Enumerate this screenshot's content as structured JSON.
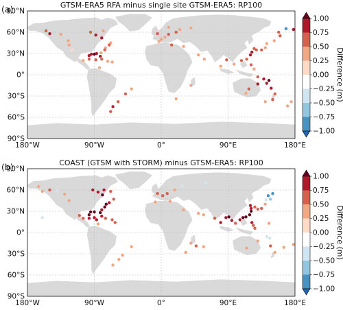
{
  "panels": [
    {
      "label": "(a)",
      "title": "GTSM-ERA5 RFA minus single site GTSM-ERA5: RP100",
      "lat_ticks": [
        "90°N",
        "60°N",
        "30°N",
        "0°",
        "30°S",
        "60°S",
        "90°S"
      ],
      "lon_ticks": [
        "180°W",
        "90°W",
        "0°",
        "90°E",
        "180°E"
      ]
    },
    {
      "label": "(b)",
      "title": "COAST (GTSM with STORM) minus GTSM-ERA5: RP100",
      "lat_ticks": [
        "90°N",
        "60°N",
        "30°N",
        "0°",
        "30°S",
        "60°S",
        "90°S"
      ],
      "lon_ticks": [
        "180°W",
        "90°W",
        "0°",
        "90°E",
        "180°E"
      ]
    }
  ],
  "colorbar": {
    "label": "Difference (m)",
    "tick_labels": [
      "1.00",
      "0.75",
      "0.50",
      "0.25",
      "0.00",
      "−0.25",
      "−0.50",
      "−0.75",
      "−1.00"
    ],
    "bins": [
      {
        "lo": 0.75,
        "hi": 1.0,
        "color": "#b2182b"
      },
      {
        "lo": 0.5,
        "hi": 0.75,
        "color": "#d6604d"
      },
      {
        "lo": 0.25,
        "hi": 0.5,
        "color": "#f4a582"
      },
      {
        "lo": 0.0,
        "hi": 0.25,
        "color": "#fddbc7"
      },
      {
        "lo": -0.25,
        "hi": 0.0,
        "color": "#ffffff"
      },
      {
        "lo": -0.5,
        "hi": -0.25,
        "color": "#d1e5f0"
      },
      {
        "lo": -0.75,
        "hi": -0.5,
        "color": "#92c5de"
      },
      {
        "lo": -1.0,
        "hi": -0.75,
        "color": "#4393c3"
      }
    ],
    "extend_max_color": "#67001f",
    "extend_min_color": "#2166ac"
  },
  "chart_data": [
    {
      "type": "scatter",
      "projection": "equirectangular world map",
      "title": "GTSM-ERA5 RFA minus single site GTSM-ERA5: RP100",
      "xlim": [
        -180,
        180
      ],
      "ylim": [
        -90,
        90
      ],
      "grid": true,
      "points": [
        {
          "lon": -155,
          "lat": 62,
          "v": 0.6
        },
        {
          "lon": -150,
          "lat": 58,
          "v": 0.9
        },
        {
          "lon": -135,
          "lat": 57,
          "v": 0.4
        },
        {
          "lon": -125,
          "lat": 48,
          "v": 0.3
        },
        {
          "lon": -124,
          "lat": 42,
          "v": 0.3
        },
        {
          "lon": -120,
          "lat": 35,
          "v": 0.2
        },
        {
          "lon": -95,
          "lat": 60,
          "v": 0.5
        },
        {
          "lon": -88,
          "lat": 56,
          "v": 0.8
        },
        {
          "lon": -80,
          "lat": 52,
          "v": 0.9
        },
        {
          "lon": -78,
          "lat": 62,
          "v": 0.4
        },
        {
          "lon": -68,
          "lat": 45,
          "v": 0.4
        },
        {
          "lon": -70,
          "lat": 42,
          "v": 0.6
        },
        {
          "lon": -75,
          "lat": 38,
          "v": 0.3
        },
        {
          "lon": -76,
          "lat": 35,
          "v": 0.5
        },
        {
          "lon": -81,
          "lat": 31,
          "v": 0.4
        },
        {
          "lon": -90,
          "lat": 29,
          "v": 1.0
        },
        {
          "lon": -94,
          "lat": 29,
          "v": 0.9
        },
        {
          "lon": -87,
          "lat": 30,
          "v": 0.9
        },
        {
          "lon": -97,
          "lat": 27,
          "v": 0.8
        },
        {
          "lon": -82,
          "lat": 26,
          "v": 0.8
        },
        {
          "lon": -97,
          "lat": 22,
          "v": 0.6
        },
        {
          "lon": -88,
          "lat": 21,
          "v": 0.7
        },
        {
          "lon": -105,
          "lat": 20,
          "v": 0.4
        },
        {
          "lon": -80,
          "lat": 22,
          "v": 0.5
        },
        {
          "lon": -72,
          "lat": 19,
          "v": 0.4
        },
        {
          "lon": -66,
          "lat": 18,
          "v": 0.3
        },
        {
          "lon": -83,
          "lat": 10,
          "v": 0.3
        },
        {
          "lon": -40,
          "lat": -20,
          "v": 0.4
        },
        {
          "lon": -48,
          "lat": -27,
          "v": 0.7
        },
        {
          "lon": -58,
          "lat": -38,
          "v": 0.6
        },
        {
          "lon": -65,
          "lat": -45,
          "v": 0.8
        },
        {
          "lon": -68,
          "lat": -52,
          "v": 0.5
        },
        {
          "lon": -5,
          "lat": 58,
          "v": 0.5
        },
        {
          "lon": 5,
          "lat": 53,
          "v": 0.4
        },
        {
          "lon": 0,
          "lat": 50,
          "v": 0.3
        },
        {
          "lon": -3,
          "lat": 47,
          "v": 0.3
        },
        {
          "lon": 10,
          "lat": 57,
          "v": 0.5
        },
        {
          "lon": 20,
          "lat": 60,
          "v": 0.6
        },
        {
          "lon": 25,
          "lat": 64,
          "v": 0.4
        },
        {
          "lon": 14,
          "lat": 42,
          "v": 0.5
        },
        {
          "lon": 30,
          "lat": 40,
          "v": 0.3
        },
        {
          "lon": 10,
          "lat": 67,
          "v": 0.3
        },
        {
          "lon": 40,
          "lat": 66,
          "v": 0.3
        },
        {
          "lon": 50,
          "lat": 28,
          "v": 0.3
        },
        {
          "lon": 58,
          "lat": 22,
          "v": 0.3
        },
        {
          "lon": 80,
          "lat": 12,
          "v": 0.4
        },
        {
          "lon": 88,
          "lat": 21,
          "v": 0.7
        },
        {
          "lon": 98,
          "lat": 15,
          "v": 0.4
        },
        {
          "lon": 108,
          "lat": 20,
          "v": 0.5
        },
        {
          "lon": 115,
          "lat": 22,
          "v": 0.6
        },
        {
          "lon": 120,
          "lat": 28,
          "v": 0.8
        },
        {
          "lon": 122,
          "lat": 32,
          "v": 0.9
        },
        {
          "lon": 125,
          "lat": 37,
          "v": 0.6
        },
        {
          "lon": 128,
          "lat": 35,
          "v": 0.5
        },
        {
          "lon": 135,
          "lat": 35,
          "v": 0.7
        },
        {
          "lon": 140,
          "lat": 38,
          "v": 0.4
        },
        {
          "lon": 142,
          "lat": 44,
          "v": 0.3
        },
        {
          "lon": 152,
          "lat": 48,
          "v": 0.4
        },
        {
          "lon": 158,
          "lat": 60,
          "v": 0.5
        },
        {
          "lon": 168,
          "lat": 65,
          "v": -0.8
        },
        {
          "lon": 178,
          "lat": 64,
          "v": 0.9
        },
        {
          "lon": 160,
          "lat": 55,
          "v": 0.7
        },
        {
          "lon": 121,
          "lat": 14,
          "v": 0.5
        },
        {
          "lon": 125,
          "lat": 8,
          "v": 0.4
        },
        {
          "lon": 130,
          "lat": -3,
          "v": 0.6
        },
        {
          "lon": 138,
          "lat": -6,
          "v": 0.9
        },
        {
          "lon": 145,
          "lat": -8,
          "v": 1.0
        },
        {
          "lon": 142,
          "lat": -12,
          "v": 0.9
        },
        {
          "lon": 148,
          "lat": -19,
          "v": 0.8
        },
        {
          "lon": 153,
          "lat": -27,
          "v": 0.7
        },
        {
          "lon": 150,
          "lat": -35,
          "v": 0.6
        },
        {
          "lon": 140,
          "lat": -38,
          "v": 0.3
        },
        {
          "lon": 118,
          "lat": -20,
          "v": 0.5
        },
        {
          "lon": 114,
          "lat": -26,
          "v": 0.4
        },
        {
          "lon": 130,
          "lat": -13,
          "v": 0.8
        },
        {
          "lon": 170,
          "lat": -44,
          "v": 0.3
        },
        {
          "lon": 175,
          "lat": -38,
          "v": 0.4
        },
        {
          "lon": 20,
          "lat": -34,
          "v": 0.3
        },
        {
          "lon": 40,
          "lat": -15,
          "v": 0.3
        }
      ]
    },
    {
      "type": "scatter",
      "projection": "equirectangular world map",
      "title": "COAST (GTSM with STORM) minus GTSM-ERA5: RP100",
      "xlim": [
        -180,
        180
      ],
      "ylim": [
        -90,
        90
      ],
      "grid": true,
      "points": [
        {
          "lon": -165,
          "lat": 65,
          "v": 0.3
        },
        {
          "lon": -160,
          "lat": 58,
          "v": 0.4
        },
        {
          "lon": -150,
          "lat": 60,
          "v": 0.5
        },
        {
          "lon": -140,
          "lat": 59,
          "v": -0.5
        },
        {
          "lon": -130,
          "lat": 54,
          "v": 0.3
        },
        {
          "lon": -124,
          "lat": 45,
          "v": 0.3
        },
        {
          "lon": -92,
          "lat": 60,
          "v": 0.8
        },
        {
          "lon": -85,
          "lat": 57,
          "v": 0.9
        },
        {
          "lon": -79,
          "lat": 53,
          "v": 1.0
        },
        {
          "lon": -77,
          "lat": 60,
          "v": 0.9
        },
        {
          "lon": -68,
          "lat": 58,
          "v": 0.7
        },
        {
          "lon": -64,
          "lat": 47,
          "v": 0.6
        },
        {
          "lon": -70,
          "lat": 42,
          "v": 0.9
        },
        {
          "lon": -74,
          "lat": 40,
          "v": 1.0
        },
        {
          "lon": -76,
          "lat": 36,
          "v": 1.0
        },
        {
          "lon": -80,
          "lat": 32,
          "v": 0.9
        },
        {
          "lon": -82,
          "lat": 28,
          "v": 1.0
        },
        {
          "lon": -90,
          "lat": 29,
          "v": 1.0
        },
        {
          "lon": -95,
          "lat": 29,
          "v": 1.0
        },
        {
          "lon": -97,
          "lat": 25,
          "v": 1.0
        },
        {
          "lon": -97,
          "lat": 20,
          "v": 0.9
        },
        {
          "lon": -90,
          "lat": 21,
          "v": 0.9
        },
        {
          "lon": -87,
          "lat": 18,
          "v": 0.8
        },
        {
          "lon": -80,
          "lat": 23,
          "v": 0.9
        },
        {
          "lon": -75,
          "lat": 20,
          "v": 0.7
        },
        {
          "lon": -66,
          "lat": 18,
          "v": 0.6
        },
        {
          "lon": -62,
          "lat": 14,
          "v": 0.5
        },
        {
          "lon": -105,
          "lat": 20,
          "v": 0.6
        },
        {
          "lon": -110,
          "lat": 24,
          "v": 0.5
        },
        {
          "lon": -85,
          "lat": 12,
          "v": 0.4
        },
        {
          "lon": -40,
          "lat": -20,
          "v": 0.3
        },
        {
          "lon": -52,
          "lat": -32,
          "v": 0.3
        },
        {
          "lon": -57,
          "lat": -38,
          "v": 0.4
        },
        {
          "lon": -65,
          "lat": -46,
          "v": 0.3
        },
        {
          "lon": -160,
          "lat": 21,
          "v": -0.3
        },
        {
          "lon": -5,
          "lat": 55,
          "v": 0.5
        },
        {
          "lon": 2,
          "lat": 52,
          "v": 0.7
        },
        {
          "lon": 8,
          "lat": 55,
          "v": 0.5
        },
        {
          "lon": -8,
          "lat": 43,
          "v": 0.3
        },
        {
          "lon": 12,
          "lat": 44,
          "v": 0.4
        },
        {
          "lon": 18,
          "lat": 60,
          "v": 0.3
        },
        {
          "lon": 28,
          "lat": 65,
          "v": -0.3
        },
        {
          "lon": 60,
          "lat": 70,
          "v": -0.4
        },
        {
          "lon": 30,
          "lat": 32,
          "v": 0.4
        },
        {
          "lon": 50,
          "lat": 27,
          "v": 0.3
        },
        {
          "lon": 57,
          "lat": 25,
          "v": 0.4
        },
        {
          "lon": 72,
          "lat": 20,
          "v": 0.7
        },
        {
          "lon": 80,
          "lat": 14,
          "v": 0.8
        },
        {
          "lon": 87,
          "lat": 21,
          "v": 0.9
        },
        {
          "lon": 91,
          "lat": 22,
          "v": 1.0
        },
        {
          "lon": 95,
          "lat": 17,
          "v": 0.9
        },
        {
          "lon": 100,
          "lat": 13,
          "v": 0.5
        },
        {
          "lon": 106,
          "lat": 18,
          "v": 0.9
        },
        {
          "lon": 110,
          "lat": 21,
          "v": 1.0
        },
        {
          "lon": 114,
          "lat": 22,
          "v": 1.0
        },
        {
          "lon": 119,
          "lat": 25,
          "v": 1.0
        },
        {
          "lon": 121,
          "lat": 30,
          "v": 1.0
        },
        {
          "lon": 121,
          "lat": 34,
          "v": 0.9
        },
        {
          "lon": 120,
          "lat": 38,
          "v": 0.8
        },
        {
          "lon": 126,
          "lat": 36,
          "v": 0.6
        },
        {
          "lon": 130,
          "lat": 33,
          "v": 0.6
        },
        {
          "lon": 135,
          "lat": 34,
          "v": 0.5
        },
        {
          "lon": 140,
          "lat": 40,
          "v": 0.4
        },
        {
          "lon": 141,
          "lat": 46,
          "v": -0.5
        },
        {
          "lon": 144,
          "lat": 52,
          "v": -0.8
        },
        {
          "lon": 150,
          "lat": 55,
          "v": -0.9
        },
        {
          "lon": 147,
          "lat": 47,
          "v": -0.6
        },
        {
          "lon": 122,
          "lat": 14,
          "v": 0.8
        },
        {
          "lon": 124,
          "lat": 10,
          "v": 0.7
        },
        {
          "lon": 126,
          "lat": 6,
          "v": 0.6
        },
        {
          "lon": 145,
          "lat": 13,
          "v": 0.4
        },
        {
          "lon": 142,
          "lat": -6,
          "v": -0.3
        },
        {
          "lon": 146,
          "lat": -8,
          "v": -0.4
        },
        {
          "lon": 115,
          "lat": -22,
          "v": 0.3
        },
        {
          "lon": 130,
          "lat": -12,
          "v": 0.4
        },
        {
          "lon": 147,
          "lat": -19,
          "v": 0.5
        },
        {
          "lon": 153,
          "lat": -28,
          "v": 0.4
        },
        {
          "lon": 165,
          "lat": -21,
          "v": 0.3
        },
        {
          "lon": 178,
          "lat": -17,
          "v": 0.4
        },
        {
          "lon": 47,
          "lat": -19,
          "v": 0.5
        },
        {
          "lon": 40,
          "lat": -15,
          "v": 0.3
        },
        {
          "lon": 33,
          "lat": -28,
          "v": 0.3
        },
        {
          "lon": 57,
          "lat": -20,
          "v": 0.3
        }
      ]
    }
  ]
}
